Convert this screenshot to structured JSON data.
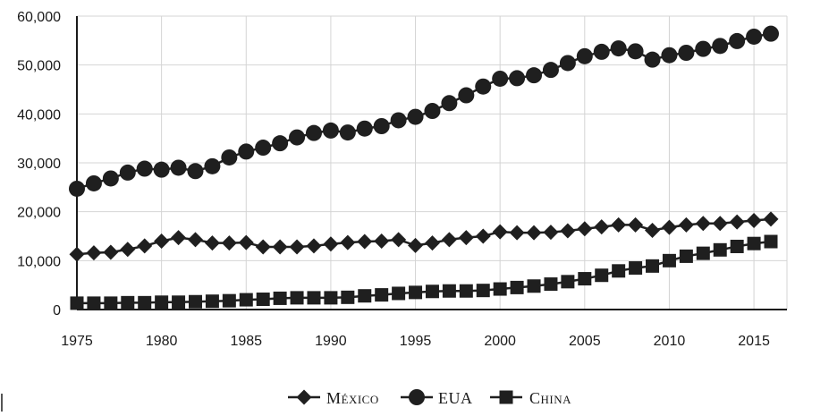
{
  "chart_data": {
    "type": "line",
    "title": "",
    "xlabel": "",
    "ylabel": "",
    "x_ticks": [
      "1975",
      "1980",
      "1985",
      "1990",
      "1995",
      "2000",
      "2005",
      "2010",
      "2015"
    ],
    "y_ticks": [
      "0",
      "10,000",
      "20,000",
      "30,000",
      "40,000",
      "50,000",
      "60,000"
    ],
    "xlim": [
      1975,
      2017
    ],
    "ylim": [
      0,
      60000
    ],
    "grid": "vertical",
    "legend_position": "bottom-right",
    "x": [
      1975,
      1976,
      1977,
      1978,
      1979,
      1980,
      1981,
      1982,
      1983,
      1984,
      1985,
      1986,
      1987,
      1988,
      1989,
      1990,
      1991,
      1992,
      1993,
      1994,
      1995,
      1996,
      1997,
      1998,
      1999,
      2000,
      2001,
      2002,
      2003,
      2004,
      2005,
      2006,
      2007,
      2008,
      2009,
      2010,
      2011,
      2012,
      2013,
      2014,
      2015,
      2016
    ],
    "series": [
      {
        "name": "México",
        "marker": "diamond",
        "values": [
          11300,
          11600,
          11700,
          12300,
          13000,
          14000,
          14700,
          14300,
          13600,
          13600,
          13700,
          12800,
          12800,
          12800,
          13000,
          13400,
          13700,
          13900,
          14000,
          14300,
          13100,
          13600,
          14300,
          14700,
          15000,
          15900,
          15700,
          15700,
          15800,
          16100,
          16500,
          16900,
          17300,
          17300,
          16200,
          16800,
          17300,
          17600,
          17600,
          17900,
          18200,
          18500
        ]
      },
      {
        "name": "EUA",
        "marker": "circle",
        "values": [
          24700,
          25800,
          26800,
          28000,
          28800,
          28600,
          29000,
          28300,
          29300,
          31100,
          32300,
          33100,
          34000,
          35200,
          36100,
          36600,
          36200,
          37000,
          37500,
          38700,
          39400,
          40600,
          42200,
          43800,
          45600,
          47200,
          47300,
          47900,
          49000,
          50400,
          51800,
          52700,
          53400,
          52800,
          51100,
          52000,
          52500,
          53300,
          53900,
          54900,
          55800,
          56400
        ]
      },
      {
        "name": "China",
        "marker": "square",
        "values": [
          1300,
          1300,
          1300,
          1400,
          1400,
          1500,
          1500,
          1600,
          1700,
          1800,
          2000,
          2100,
          2300,
          2400,
          2400,
          2400,
          2500,
          2800,
          3000,
          3300,
          3500,
          3700,
          3800,
          3800,
          3900,
          4200,
          4500,
          4800,
          5200,
          5700,
          6300,
          7000,
          7900,
          8500,
          8900,
          10000,
          10900,
          11500,
          12200,
          12900,
          13500,
          13900
        ]
      }
    ]
  },
  "colors": {
    "series": "#1f1f1f",
    "grid": "#d4d4d4",
    "axis": "#1a1a1a",
    "text": "#1a1a1a"
  }
}
